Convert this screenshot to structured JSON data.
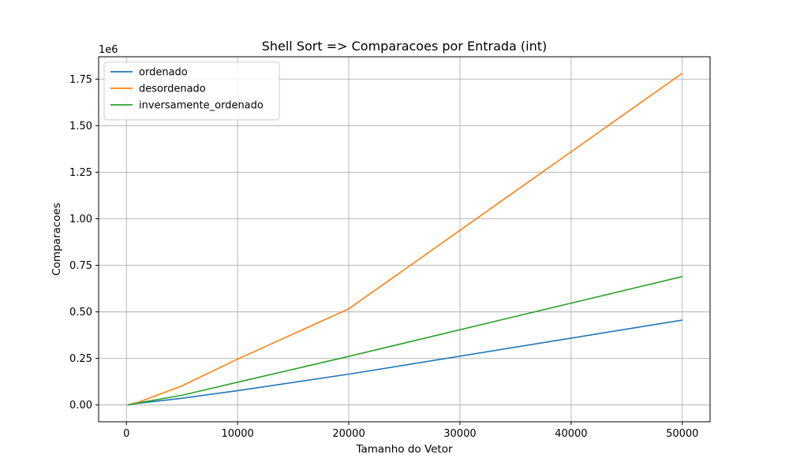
{
  "chart_data": {
    "type": "line",
    "title": "Shell Sort => Comparacoes por Entrada (int)",
    "xlabel": "Tamanho do Vetor",
    "ylabel": "Comparacoes",
    "y_multiplier_label": "1e6",
    "xlim": [
      -2500,
      52500
    ],
    "ylim": [
      -0.09,
      1.87
    ],
    "x_ticks": [
      0,
      10000,
      20000,
      30000,
      40000,
      50000
    ],
    "x_tick_labels": [
      "0",
      "10000",
      "20000",
      "30000",
      "40000",
      "50000"
    ],
    "y_ticks": [
      0.0,
      0.25,
      0.5,
      0.75,
      1.0,
      1.25,
      1.5,
      1.75
    ],
    "y_tick_labels": [
      "0.00",
      "0.25",
      "0.50",
      "0.75",
      "1.00",
      "1.25",
      "1.50",
      "1.75"
    ],
    "grid": true,
    "legend_position": "top-left",
    "x": [
      100,
      1000,
      5000,
      10000,
      20000,
      50000
    ],
    "series": [
      {
        "name": "ordenado",
        "color": "#1f77b4",
        "values": [
          0.0005,
          0.0085,
          0.0362,
          0.0771,
          0.1656,
          0.4558
        ]
      },
      {
        "name": "desordenado",
        "color": "#ff7f0e",
        "values": [
          0.0009,
          0.0132,
          0.1027,
          0.2463,
          0.5161,
          1.7812
        ]
      },
      {
        "name": "inversamente_ordenado",
        "color": "#2ca02c",
        "values": [
          0.0006,
          0.0105,
          0.0524,
          0.1224,
          0.2612,
          0.6898
        ]
      }
    ]
  }
}
